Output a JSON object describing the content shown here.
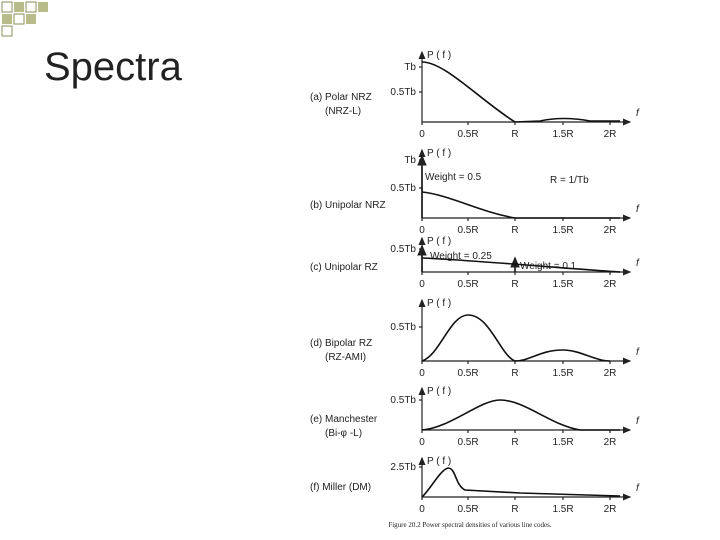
{
  "title": "Spectra",
  "ticks": [
    "0",
    "0.5R",
    "R",
    "1.5R",
    "2R"
  ],
  "axis_label": "f",
  "ordinate": "P ( f )",
  "panels": [
    {
      "label": [
        "(a) Polar NRZ",
        "(NRZ-L)"
      ],
      "levels": [
        "Tb",
        "0.5Tb"
      ],
      "notes": []
    },
    {
      "label": [
        "(b) Unipolar NRZ"
      ],
      "levels": [
        "Tb",
        "0.5Tb"
      ],
      "notes": [
        "Weight = 0.5",
        "R = 1/Tb"
      ]
    },
    {
      "label": [
        "(c) Unipolar RZ"
      ],
      "levels": [
        "0.5Tb"
      ],
      "notes": [
        "Weight = 0.25",
        "Weight = 0.1"
      ]
    },
    {
      "label": [
        "(d) Bipolar RZ",
        "(RZ-AMI)"
      ],
      "levels": [
        "0.5Tb"
      ],
      "notes": []
    },
    {
      "label": [
        "(e) Manchester",
        "(Bi-φ -L)"
      ],
      "levels": [
        "0.5Tb"
      ],
      "notes": []
    },
    {
      "label": [
        "(f) Miller (DM)"
      ],
      "levels": [
        "2.5Tb"
      ],
      "notes": []
    }
  ],
  "caption": "Figure 20.2  Power spectral densities of various line codes."
}
